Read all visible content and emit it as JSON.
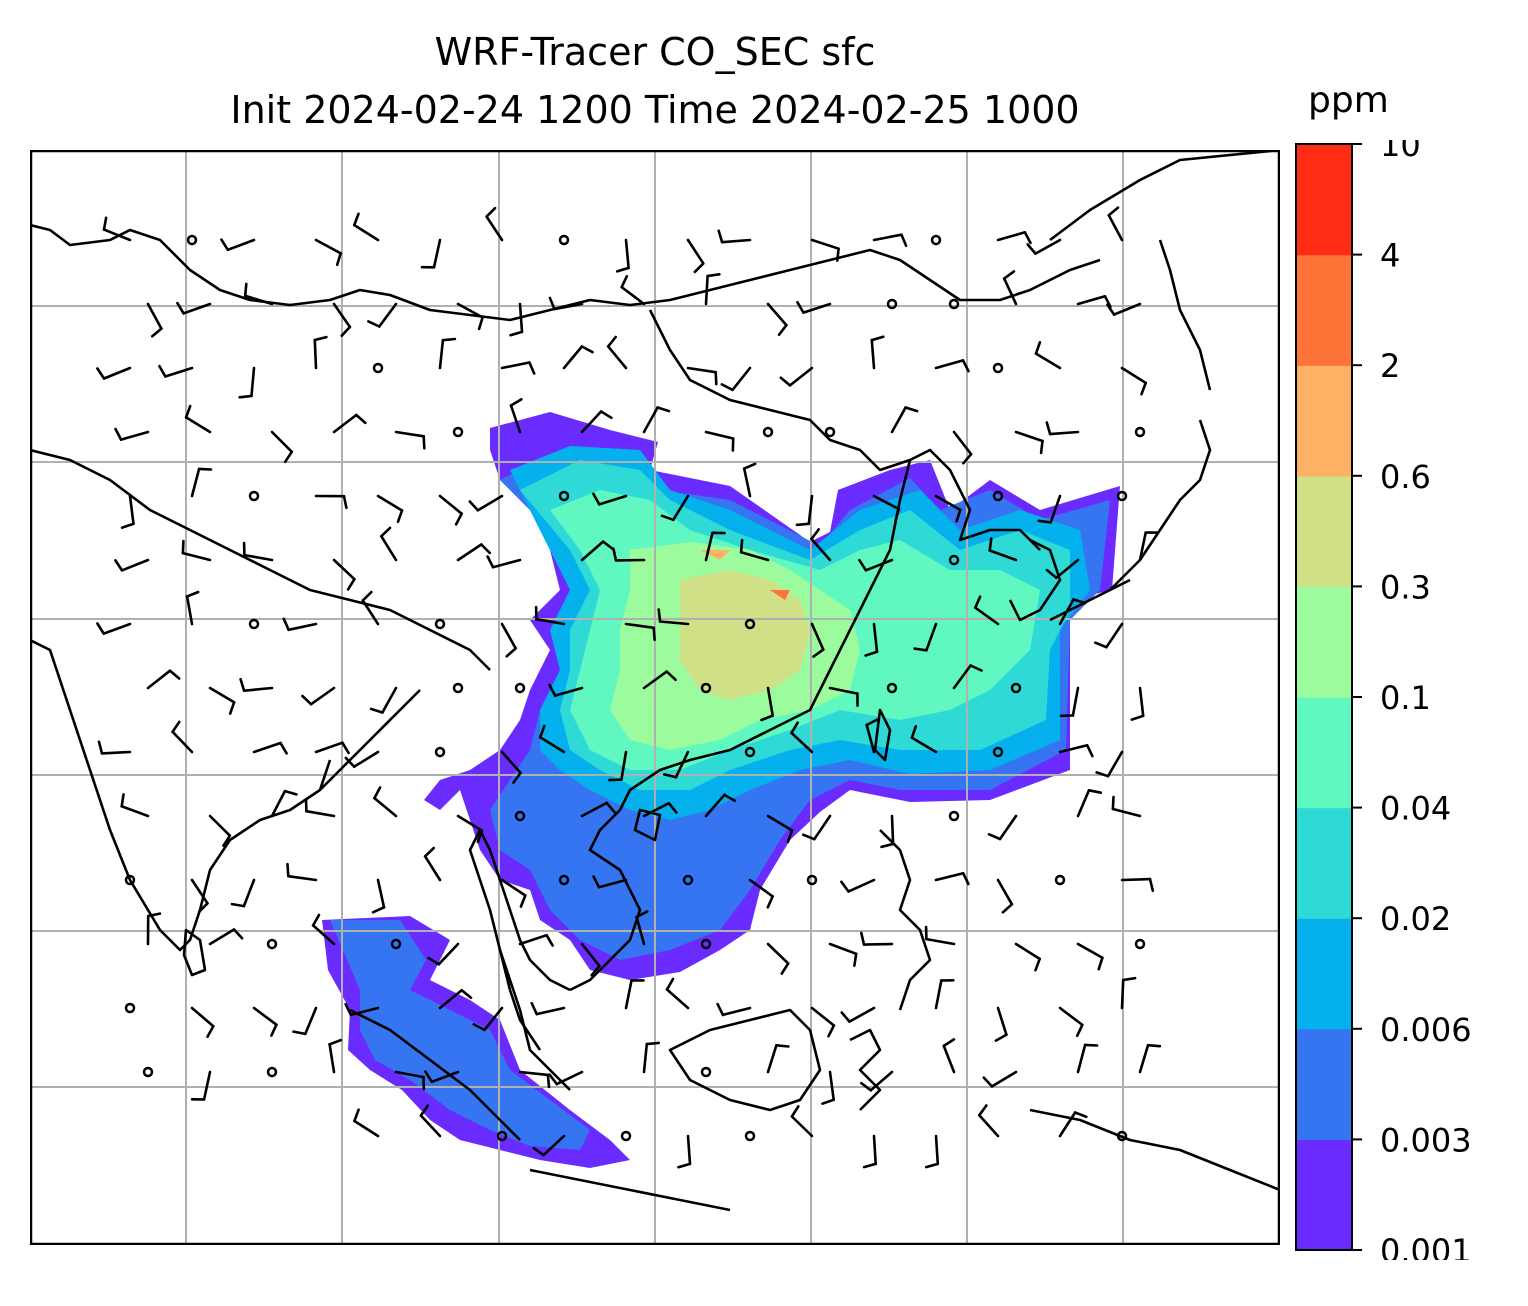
{
  "title": {
    "line1": "WRF-Tracer CO_SEC sfc",
    "line2": "Init 2024-02-24 1200 Time 2024-02-25 1000"
  },
  "colorbar": {
    "unit": "ppm",
    "levels": [
      "0.001",
      "0.003",
      "0.006",
      "0.02",
      "0.04",
      "0.1",
      "0.3",
      "0.6",
      "2",
      "4",
      "10"
    ],
    "colors": [
      "#6a2bff",
      "#3575f2",
      "#05b1ec",
      "#2ed9d6",
      "#60f8c0",
      "#9cfb9c",
      "#cfe087",
      "#fdb164",
      "#fd7338",
      "#fe2c15"
    ]
  },
  "map": {
    "grid_color": "#b0b0b0",
    "coast_color": "#000000",
    "barb_color": "#000000"
  }
}
